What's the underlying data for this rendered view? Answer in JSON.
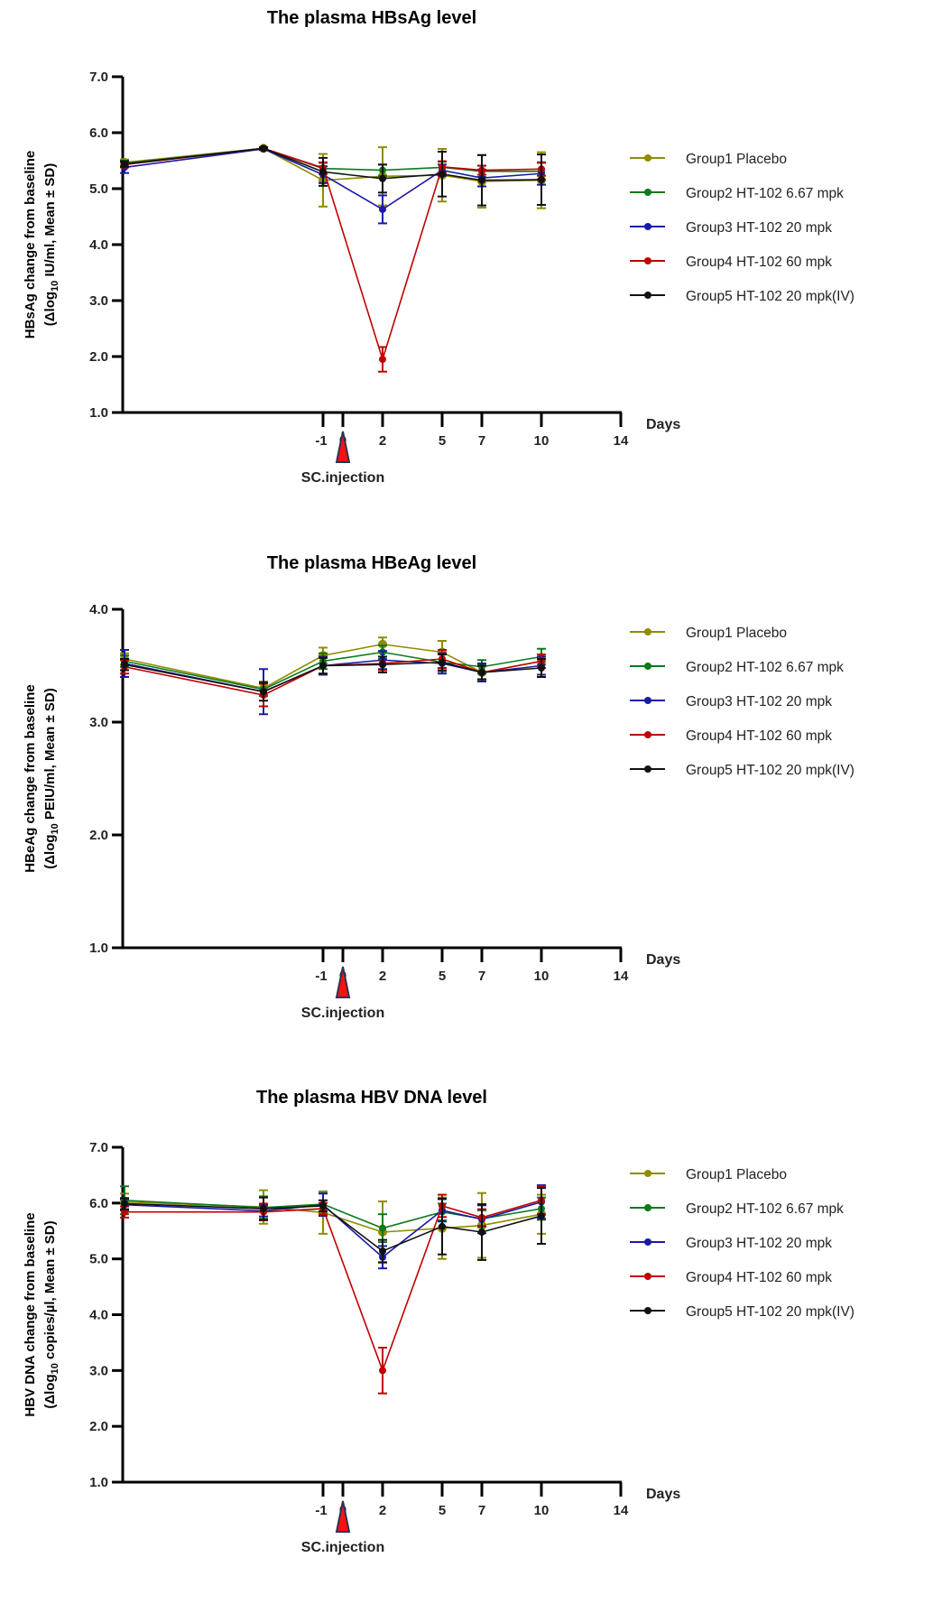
{
  "chart_data": [
    {
      "type": "line",
      "title": "The plasma HBsAg level",
      "ylabel_line1": "HBsAg change from baseline",
      "ylabel_line2": "(Δlog10 IU/ml, Mean ± SD)",
      "ylabel_prefix": "(Δlog",
      "ylabel_sub": "10",
      "ylabel_suffix": " IU/ml, Mean ± SD)",
      "xlabel": "Days",
      "ylim": [
        1.0,
        7.0
      ],
      "yticks": [
        "1.0",
        "2.0",
        "3.0",
        "4.0",
        "5.0",
        "6.0",
        "7.0"
      ],
      "xlim": [
        -11,
        14
      ],
      "xticks": [
        -1,
        0,
        2,
        5,
        7,
        10,
        14
      ],
      "x": [
        -11,
        -4,
        -1,
        2,
        5,
        7,
        10
      ],
      "annotation": "SC.injection",
      "annotation_x": 0,
      "series": [
        {
          "name": "Group1 Placebo",
          "color": "#8f8c00",
          "values": [
            5.47,
            5.72,
            5.15,
            5.22,
            5.24,
            5.13,
            5.15
          ],
          "sd": [
            0.05,
            0.02,
            0.47,
            0.52,
            0.47,
            0.47,
            0.5
          ]
        },
        {
          "name": "Group2 HT-102 6.67 mpk",
          "color": "#0b7a1c",
          "values": [
            5.45,
            5.72,
            5.36,
            5.33,
            5.38,
            5.31,
            5.31
          ],
          "sd": [
            0.05,
            0.02,
            0.1,
            0.1,
            0.1,
            0.1,
            0.15
          ]
        },
        {
          "name": "Group3 HT-102 20 mpk",
          "color": "#1a1aa6",
          "values": [
            5.38,
            5.71,
            5.25,
            4.63,
            5.33,
            5.19,
            5.27
          ],
          "sd": [
            0.1,
            0.02,
            0.15,
            0.25,
            0.1,
            0.15,
            0.2
          ]
        },
        {
          "name": "Group4 HT-102 60 mpk",
          "color": "#c00000",
          "values": [
            5.43,
            5.72,
            5.37,
            1.95,
            5.39,
            5.33,
            5.35
          ],
          "sd": [
            0.05,
            0.02,
            0.1,
            0.22,
            0.1,
            0.08,
            0.12
          ]
        },
        {
          "name": "Group5 HT-102 20 mpk(IV)",
          "color": "#111111",
          "values": [
            5.44,
            5.72,
            5.3,
            5.18,
            5.26,
            5.15,
            5.16
          ],
          "sd": [
            0.05,
            0.02,
            0.25,
            0.25,
            0.4,
            0.45,
            0.45
          ]
        }
      ]
    },
    {
      "type": "line",
      "title": "The plasma HBeAg level",
      "ylabel_line1": "HBeAg change from baseline",
      "ylabel_line2": "(Δlog10 PEIU/ml, Mean ± SD)",
      "ylabel_prefix": "(Δlog",
      "ylabel_sub": "10",
      "ylabel_suffix": " PEIU/ml, Mean ± SD)",
      "xlabel": "Days",
      "ylim": [
        1.0,
        4.0
      ],
      "yticks": [
        "1.0",
        "2.0",
        "3.0",
        "4.0"
      ],
      "xlim": [
        -11,
        14
      ],
      "xticks": [
        -1,
        0,
        2,
        5,
        7,
        10,
        14
      ],
      "x": [
        -11,
        -4,
        -1,
        2,
        5,
        7,
        10
      ],
      "annotation": "SC.injection",
      "annotation_x": 0,
      "series": [
        {
          "name": "Group1 Placebo",
          "color": "#8f8c00",
          "values": [
            3.56,
            3.3,
            3.59,
            3.69,
            3.62,
            3.44,
            3.54
          ],
          "sd": [
            0.05,
            0.06,
            0.07,
            0.06,
            0.1,
            0.07,
            0.06
          ]
        },
        {
          "name": "Group2 HT-102 6.67 mpk",
          "color": "#0b7a1c",
          "values": [
            3.54,
            3.29,
            3.54,
            3.62,
            3.53,
            3.49,
            3.58
          ],
          "sd": [
            0.05,
            0.06,
            0.07,
            0.06,
            0.08,
            0.06,
            0.07
          ]
        },
        {
          "name": "Group3 HT-102 20 mpk",
          "color": "#1a1aa6",
          "values": [
            3.52,
            3.27,
            3.5,
            3.55,
            3.52,
            3.44,
            3.5
          ],
          "sd": [
            0.12,
            0.2,
            0.08,
            0.08,
            0.09,
            0.08,
            0.08
          ]
        },
        {
          "name": "Group4 HT-102 60 mpk",
          "color": "#c00000",
          "values": [
            3.49,
            3.24,
            3.5,
            3.52,
            3.56,
            3.44,
            3.54
          ],
          "sd": [
            0.06,
            0.1,
            0.07,
            0.06,
            0.08,
            0.06,
            0.06
          ]
        },
        {
          "name": "Group5 HT-102 20 mpk(IV)",
          "color": "#111111",
          "values": [
            3.51,
            3.27,
            3.5,
            3.51,
            3.53,
            3.44,
            3.48
          ],
          "sd": [
            0.05,
            0.08,
            0.07,
            0.07,
            0.07,
            0.06,
            0.08
          ]
        }
      ]
    },
    {
      "type": "line",
      "title": "The plasma HBV DNA level",
      "ylabel_line1": "HBV DNA change from baseline",
      "ylabel_line2": "(Δlog10 copies/µl, Mean ± SD)",
      "ylabel_prefix": "(Δlog",
      "ylabel_sub": "10",
      "ylabel_suffix": " copies/µl, Mean ± SD)",
      "xlabel": "Days",
      "ylim": [
        1.0,
        7.0
      ],
      "yticks": [
        "1.0",
        "2.0",
        "3.0",
        "4.0",
        "5.0",
        "6.0",
        "7.0"
      ],
      "xlim": [
        -11,
        14
      ],
      "xticks": [
        -1,
        0,
        2,
        5,
        7,
        10,
        14
      ],
      "x": [
        -11,
        -4,
        -1,
        2,
        5,
        7,
        10
      ],
      "annotation": "SC.injection",
      "annotation_x": 0,
      "series": [
        {
          "name": "Group1 Placebo",
          "color": "#8f8c00",
          "values": [
            6.02,
            5.93,
            5.83,
            5.48,
            5.55,
            5.6,
            5.8
          ],
          "sd": [
            0.15,
            0.3,
            0.38,
            0.55,
            0.55,
            0.58,
            0.35
          ]
        },
        {
          "name": "Group2 HT-102 6.67 mpk",
          "color": "#0b7a1c",
          "values": [
            6.05,
            5.92,
            5.98,
            5.55,
            5.84,
            5.72,
            5.9
          ],
          "sd": [
            0.25,
            0.2,
            0.2,
            0.25,
            0.15,
            0.15,
            0.2
          ]
        },
        {
          "name": "Group3 HT-102 20 mpk",
          "color": "#1a1aa6",
          "values": [
            5.97,
            5.86,
            5.97,
            5.03,
            5.87,
            5.71,
            6.02
          ],
          "sd": [
            0.1,
            0.1,
            0.2,
            0.2,
            0.2,
            0.25,
            0.3
          ]
        },
        {
          "name": "Group4 HT-102 60 mpk",
          "color": "#c00000",
          "values": [
            5.84,
            5.84,
            5.9,
            3.0,
            5.95,
            5.74,
            6.05
          ],
          "sd": [
            0.1,
            0.15,
            0.1,
            0.41,
            0.2,
            0.15,
            0.25
          ]
        },
        {
          "name": "Group5 HT-102 20 mpk(IV)",
          "color": "#111111",
          "values": [
            5.99,
            5.9,
            5.95,
            5.14,
            5.58,
            5.48,
            5.77
          ],
          "sd": [
            0.1,
            0.2,
            0.1,
            0.2,
            0.5,
            0.5,
            0.5
          ]
        }
      ]
    }
  ]
}
